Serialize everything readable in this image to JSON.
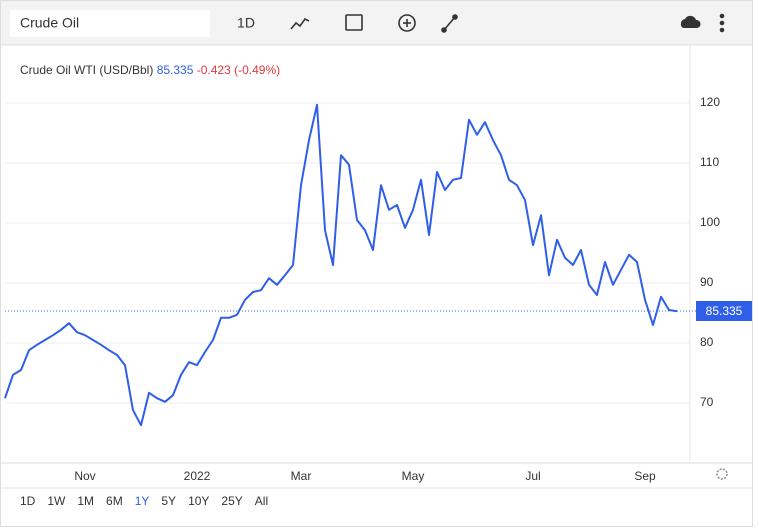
{
  "toolbar": {
    "search": "Crude Oil",
    "interval": "1D"
  },
  "chart_data": {
    "type": "line",
    "header": {
      "name": "Crude Oil WTI (USD/Bbl)",
      "last": 85.335,
      "change": -0.423,
      "change_pct": "(-0.49%)"
    },
    "categories": [
      null,
      null,
      null,
      null,
      null,
      null,
      null,
      null,
      null,
      null,
      "Nov",
      null,
      null,
      null,
      null,
      null,
      null,
      null,
      null,
      null,
      null,
      null,
      null,
      null,
      "2022",
      null,
      null,
      null,
      null,
      null,
      null,
      null,
      null,
      null,
      null,
      null,
      null,
      "Mar",
      null,
      null,
      null,
      null,
      null,
      null,
      null,
      null,
      null,
      null,
      null,
      null,
      null,
      "May",
      null,
      null,
      null,
      null,
      null,
      null,
      null,
      null,
      null,
      null,
      null,
      null,
      null,
      null,
      "Jul",
      null,
      null,
      null,
      null,
      null,
      null,
      null,
      null,
      null,
      null,
      null,
      null,
      null,
      "Sep",
      null,
      null,
      null,
      null
    ],
    "series": [
      {
        "name": "Crude Oil WTI",
        "color": "#2f5fe8",
        "values": [
          70.8,
          74.7,
          75.5,
          78.8,
          79.7,
          80.5,
          81.3,
          82.2,
          83.3,
          81.8,
          81.3,
          80.5,
          79.7,
          78.8,
          78,
          76.3,
          68.8,
          66.3,
          71.7,
          70.8,
          70.2,
          71.3,
          74.7,
          76.8,
          76.3,
          78.5,
          80.5,
          84.2,
          84.2,
          84.7,
          87.2,
          88.5,
          88.8,
          90.8,
          89.7,
          91.3,
          93,
          106.3,
          113.8,
          119.7,
          98.8,
          93,
          111.3,
          109.7,
          100.5,
          98.8,
          95.5,
          106.3,
          102.2,
          103,
          99.2,
          102.2,
          107.2,
          98,
          108.5,
          105.5,
          107.2,
          107.5,
          117.2,
          114.7,
          116.8,
          113.8,
          111.3,
          107.2,
          106.3,
          103.8,
          96.3,
          101.3,
          91.3,
          97.2,
          94.2,
          93,
          95.5,
          89.7,
          88,
          93.5,
          89.7,
          92.2,
          94.7,
          93.5,
          87.2,
          83,
          87.7,
          85.5,
          85.3
        ]
      }
    ],
    "ylim": [
      60,
      130
    ],
    "yticks": [
      70,
      80,
      90,
      100,
      110,
      120
    ],
    "grid": true,
    "price_color": "#2f5fe8",
    "change_color": "#e0393e"
  },
  "ranges": [
    "1D",
    "1W",
    "1M",
    "6M",
    "1Y",
    "5Y",
    "10Y",
    "25Y",
    "All"
  ],
  "active_range": "1Y"
}
